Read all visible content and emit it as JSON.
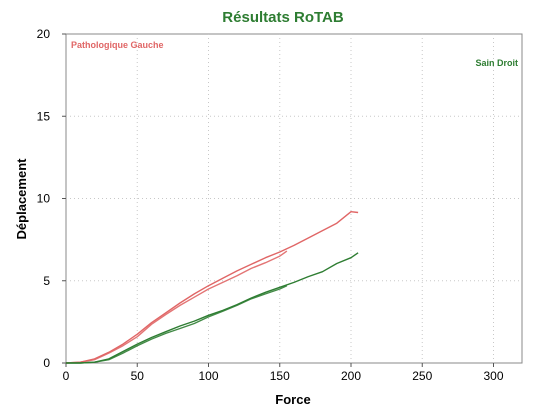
{
  "chart_data": {
    "type": "line",
    "title": "Résultats RoTAB",
    "xlabel": "Force",
    "ylabel": "Déplacement",
    "xlim": [
      0,
      320
    ],
    "ylim": [
      0,
      20
    ],
    "xticks": [
      0,
      50,
      100,
      150,
      200,
      250,
      300
    ],
    "yticks": [
      0,
      5,
      10,
      15,
      20
    ],
    "grid": true,
    "legend": [
      "top-left",
      "top-right"
    ],
    "series": [
      {
        "name": "Pathologique Gauche",
        "color": "#e06666",
        "curves": [
          [
            [
              0,
              0
            ],
            [
              10,
              0.05
            ],
            [
              20,
              0.25
            ],
            [
              30,
              0.65
            ],
            [
              40,
              1.15
            ],
            [
              50,
              1.75
            ],
            [
              60,
              2.45
            ],
            [
              70,
              3.05
            ],
            [
              80,
              3.65
            ],
            [
              90,
              4.2
            ],
            [
              100,
              4.7
            ],
            [
              110,
              5.15
            ],
            [
              120,
              5.6
            ],
            [
              130,
              6.0
            ],
            [
              140,
              6.4
            ],
            [
              150,
              6.75
            ],
            [
              160,
              7.15
            ],
            [
              170,
              7.6
            ],
            [
              180,
              8.05
            ],
            [
              190,
              8.5
            ],
            [
              200,
              9.2
            ],
            [
              205,
              9.15
            ]
          ],
          [
            [
              0,
              0
            ],
            [
              10,
              0.05
            ],
            [
              20,
              0.2
            ],
            [
              30,
              0.6
            ],
            [
              40,
              1.05
            ],
            [
              50,
              1.6
            ],
            [
              60,
              2.35
            ],
            [
              70,
              2.95
            ],
            [
              80,
              3.5
            ],
            [
              90,
              4.0
            ],
            [
              100,
              4.5
            ],
            [
              110,
              4.9
            ],
            [
              120,
              5.3
            ],
            [
              130,
              5.75
            ],
            [
              140,
              6.1
            ],
            [
              150,
              6.5
            ],
            [
              155,
              6.8
            ]
          ]
        ]
      },
      {
        "name": "Sain Droit",
        "color": "#2e7d32",
        "curves": [
          [
            [
              0,
              0
            ],
            [
              10,
              0
            ],
            [
              20,
              0.05
            ],
            [
              30,
              0.25
            ],
            [
              40,
              0.7
            ],
            [
              50,
              1.15
            ],
            [
              60,
              1.55
            ],
            [
              70,
              1.9
            ],
            [
              80,
              2.25
            ],
            [
              90,
              2.55
            ],
            [
              100,
              2.9
            ],
            [
              110,
              3.2
            ],
            [
              120,
              3.55
            ],
            [
              130,
              3.95
            ],
            [
              140,
              4.3
            ],
            [
              150,
              4.6
            ],
            [
              160,
              4.9
            ],
            [
              170,
              5.25
            ],
            [
              180,
              5.55
            ],
            [
              190,
              6.05
            ],
            [
              200,
              6.4
            ],
            [
              205,
              6.7
            ]
          ],
          [
            [
              0,
              0
            ],
            [
              10,
              0
            ],
            [
              20,
              0.05
            ],
            [
              30,
              0.2
            ],
            [
              40,
              0.6
            ],
            [
              50,
              1.05
            ],
            [
              60,
              1.45
            ],
            [
              70,
              1.8
            ],
            [
              80,
              2.1
            ],
            [
              90,
              2.4
            ],
            [
              100,
              2.8
            ],
            [
              110,
              3.15
            ],
            [
              120,
              3.5
            ],
            [
              130,
              3.9
            ],
            [
              140,
              4.2
            ],
            [
              150,
              4.5
            ],
            [
              155,
              4.7
            ]
          ]
        ]
      }
    ]
  }
}
